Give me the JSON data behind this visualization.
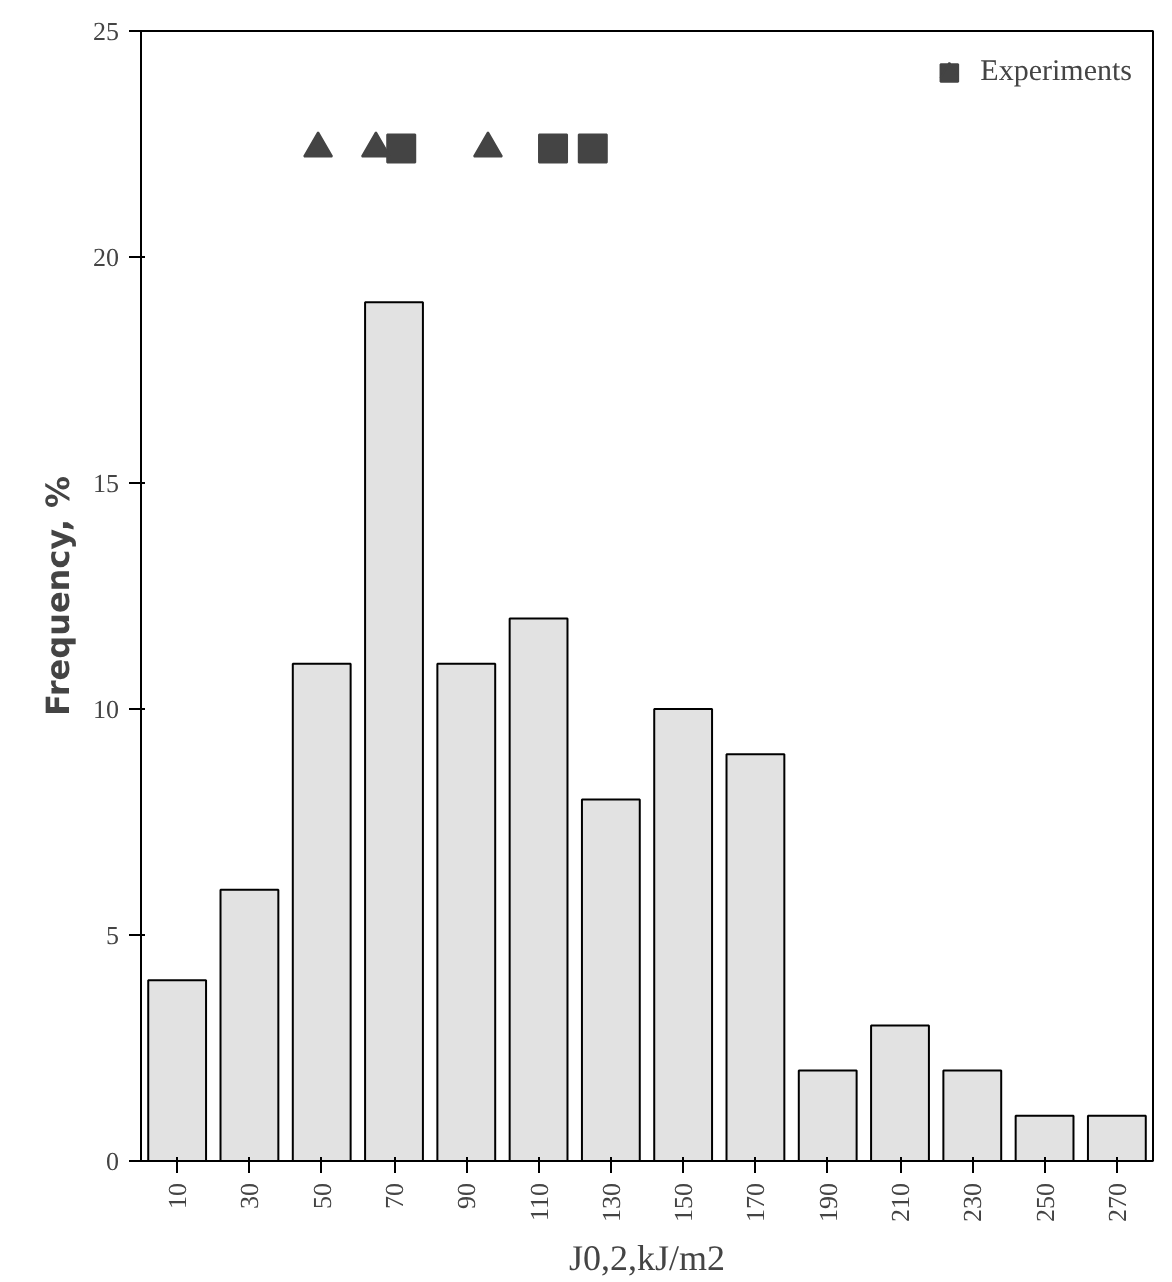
{
  "chart_data": {
    "type": "bar",
    "xlabel": "J0,2,kJ/m2",
    "ylabel": "Frequency, %",
    "legend": "top right",
    "grid": false,
    "x": [
      10,
      30,
      50,
      70,
      90,
      110,
      130,
      150,
      170,
      190,
      210,
      230,
      250,
      270
    ],
    "xlim": [
      0,
      280
    ],
    "xticks": [
      10,
      30,
      50,
      70,
      90,
      110,
      130,
      150,
      170,
      190,
      210,
      230,
      250,
      270
    ],
    "ylim": [
      0,
      25
    ],
    "yticks": [
      0,
      5,
      10,
      15,
      20,
      25
    ],
    "series": [
      {
        "color": "#e2e2e2",
        "values": [
          4,
          6,
          11,
          19,
          11,
          12,
          8,
          10,
          9,
          2,
          3,
          2,
          1,
          1
        ]
      },
      {
        "type": "scatter",
        "name": "Experiments",
        "marker": "square",
        "color": "#444444",
        "x": [
          72,
          114,
          125
        ],
        "values": [
          22.4,
          22.4,
          22.4
        ]
      },
      {
        "type": "scatter",
        "marker": "triangle",
        "color": "#444444",
        "x": [
          49,
          65,
          96
        ],
        "values": [
          22.4,
          22.4,
          22.4
        ]
      }
    ]
  }
}
